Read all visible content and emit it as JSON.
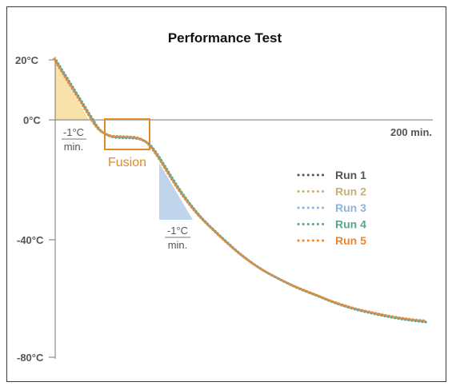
{
  "chart_data": {
    "type": "line",
    "title": "Performance Test",
    "xlabel": "",
    "ylabel": "",
    "y_ticks": [
      "20°C",
      "0°C",
      "-40°C",
      "-80°C"
    ],
    "x_end_label": "200 min.",
    "ylim": [
      -80,
      20
    ],
    "xlim": [
      0,
      200
    ],
    "annotations": {
      "rate_top": "-1°C",
      "rate_bottom": "min.",
      "fusion": "Fusion"
    },
    "series": [
      {
        "name": "Run 1",
        "color": "#555555"
      },
      {
        "name": "Run 2",
        "color": "#c9b073"
      },
      {
        "name": "Run 3",
        "color": "#8fb3d9"
      },
      {
        "name": "Run 4",
        "color": "#5aa58a"
      },
      {
        "name": "Run 5",
        "color": "#f0862a"
      }
    ],
    "x": [
      0,
      5,
      10,
      15,
      20,
      22,
      25,
      30,
      35,
      40,
      45,
      50,
      55,
      60,
      65,
      70,
      75,
      80,
      90,
      100,
      110,
      120,
      130,
      140,
      150,
      160,
      170,
      180,
      190,
      200
    ],
    "y": [
      20,
      15,
      10,
      5,
      0,
      -2,
      -4,
      -5.5,
      -5.8,
      -5.9,
      -6.3,
      -8,
      -12,
      -17,
      -22,
      -26.5,
      -30.5,
      -34,
      -40,
      -45.5,
      -50,
      -53.5,
      -56.5,
      -59,
      -61.5,
      -63.5,
      -65,
      -66.3,
      -67.3,
      -68
    ]
  }
}
